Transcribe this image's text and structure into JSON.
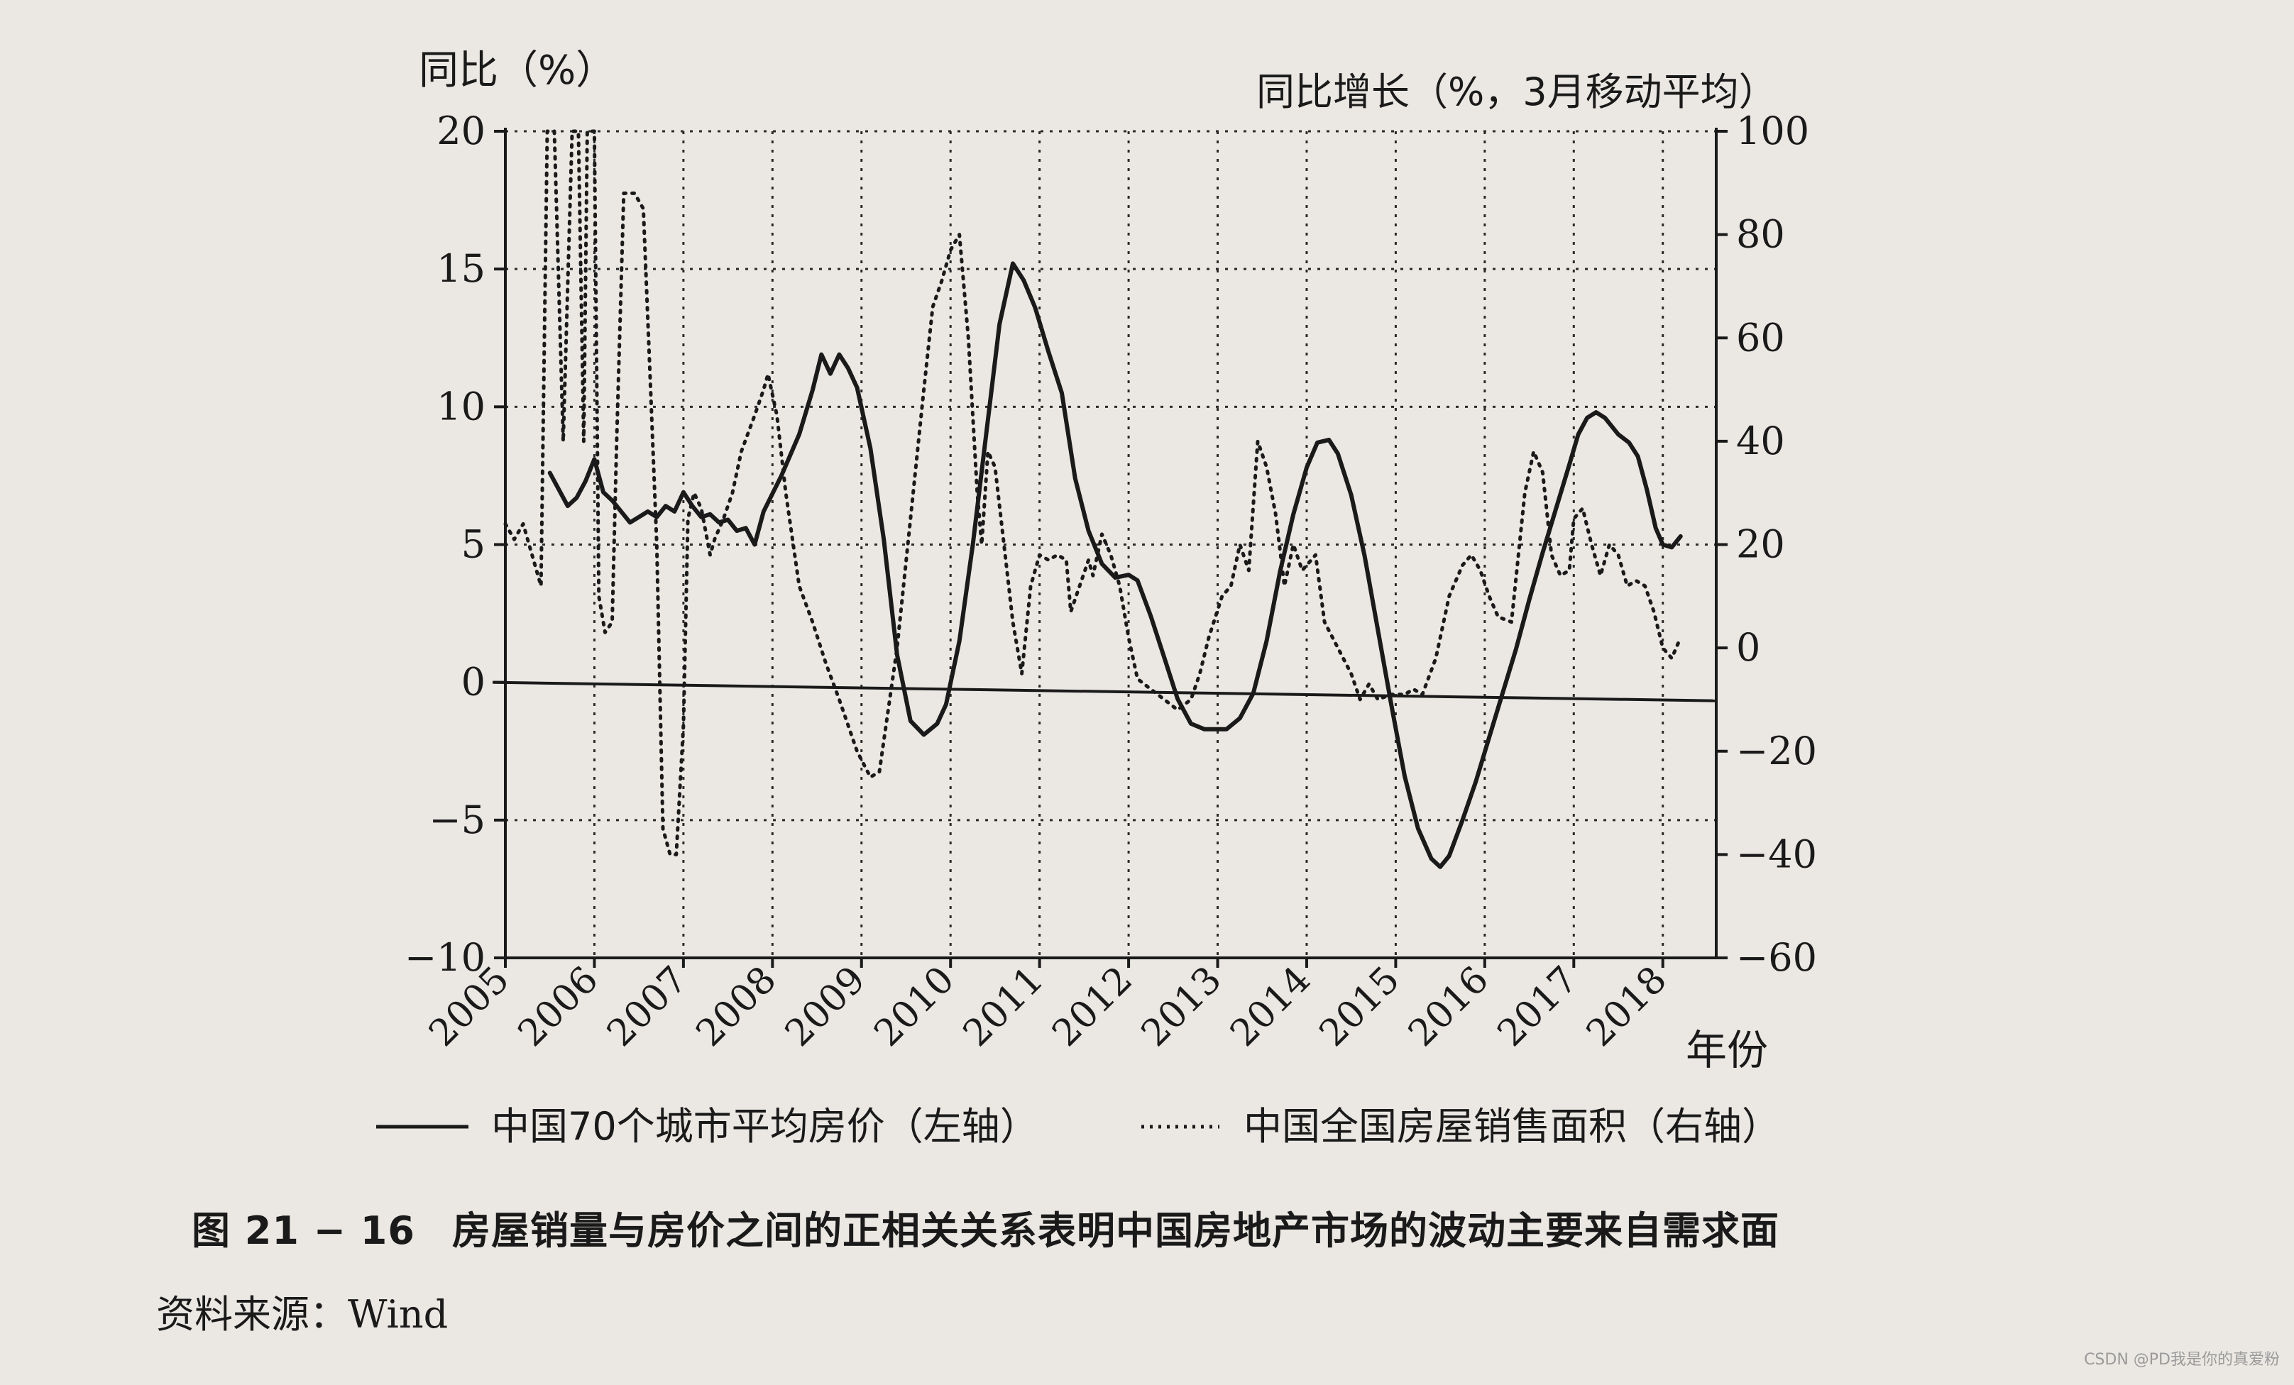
{
  "chart_data": {
    "type": "line",
    "left_axis": {
      "title": "同比（%）",
      "min": -10,
      "max": 20,
      "ticks": [
        -10,
        -5,
        0,
        5,
        10,
        15,
        20
      ]
    },
    "right_axis": {
      "title": "同比增长（%，3月移动平均）",
      "min": -60,
      "max": 100,
      "ticks": [
        -60,
        -40,
        -20,
        0,
        20,
        40,
        60,
        80,
        100
      ]
    },
    "x_axis": {
      "label": "年份",
      "min": 2005,
      "max": 2018.6,
      "ticks": [
        "2005",
        "2006",
        "2007",
        "2008",
        "2009",
        "2010",
        "2011",
        "2012",
        "2013",
        "2014",
        "2015",
        "2016",
        "2017",
        "2018"
      ]
    },
    "grid": "dotted",
    "legend": "bottom",
    "series": [
      {
        "name": "中国70个城市平均房价（左轴）",
        "axis": "left",
        "style": "solid",
        "points": [
          [
            2005.5,
            7.6
          ],
          [
            2005.6,
            7.0
          ],
          [
            2005.7,
            6.4
          ],
          [
            2005.8,
            6.7
          ],
          [
            2005.9,
            7.3
          ],
          [
            2006.0,
            8.1
          ],
          [
            2006.1,
            6.9
          ],
          [
            2006.2,
            6.6
          ],
          [
            2006.3,
            6.2
          ],
          [
            2006.4,
            5.8
          ],
          [
            2006.5,
            6.0
          ],
          [
            2006.6,
            6.2
          ],
          [
            2006.7,
            6.0
          ],
          [
            2006.8,
            6.4
          ],
          [
            2006.9,
            6.2
          ],
          [
            2007.0,
            6.9
          ],
          [
            2007.1,
            6.4
          ],
          [
            2007.2,
            6.0
          ],
          [
            2007.3,
            6.1
          ],
          [
            2007.4,
            5.8
          ],
          [
            2007.5,
            5.9
          ],
          [
            2007.6,
            5.5
          ],
          [
            2007.7,
            5.6
          ],
          [
            2007.8,
            5.0
          ],
          [
            2007.9,
            6.2
          ],
          [
            2008.1,
            7.5
          ],
          [
            2008.3,
            9.0
          ],
          [
            2008.45,
            10.6
          ],
          [
            2008.55,
            11.9
          ],
          [
            2008.65,
            11.2
          ],
          [
            2008.75,
            11.9
          ],
          [
            2008.85,
            11.4
          ],
          [
            2008.95,
            10.7
          ],
          [
            2009.1,
            8.5
          ],
          [
            2009.25,
            5.2
          ],
          [
            2009.4,
            1.0
          ],
          [
            2009.55,
            -1.4
          ],
          [
            2009.7,
            -1.9
          ],
          [
            2009.85,
            -1.5
          ],
          [
            2009.95,
            -0.8
          ],
          [
            2010.1,
            1.5
          ],
          [
            2010.25,
            5.0
          ],
          [
            2010.4,
            9.0
          ],
          [
            2010.55,
            13.0
          ],
          [
            2010.7,
            15.2
          ],
          [
            2010.82,
            14.6
          ],
          [
            2010.95,
            13.6
          ],
          [
            2011.1,
            12.0
          ],
          [
            2011.25,
            10.5
          ],
          [
            2011.4,
            7.4
          ],
          [
            2011.55,
            5.5
          ],
          [
            2011.7,
            4.3
          ],
          [
            2011.85,
            3.8
          ],
          [
            2012.0,
            3.9
          ],
          [
            2012.1,
            3.7
          ],
          [
            2012.25,
            2.4
          ],
          [
            2012.4,
            0.9
          ],
          [
            2012.55,
            -0.6
          ],
          [
            2012.7,
            -1.5
          ],
          [
            2012.85,
            -1.7
          ],
          [
            2013.0,
            -1.7
          ],
          [
            2013.1,
            -1.7
          ],
          [
            2013.25,
            -1.3
          ],
          [
            2013.4,
            -0.4
          ],
          [
            2013.55,
            1.5
          ],
          [
            2013.7,
            4.0
          ],
          [
            2013.85,
            6.1
          ],
          [
            2014.0,
            7.8
          ],
          [
            2014.12,
            8.7
          ],
          [
            2014.25,
            8.8
          ],
          [
            2014.35,
            8.3
          ],
          [
            2014.5,
            6.8
          ],
          [
            2014.65,
            4.6
          ],
          [
            2014.8,
            1.9
          ],
          [
            2014.95,
            -0.8
          ],
          [
            2015.1,
            -3.4
          ],
          [
            2015.25,
            -5.3
          ],
          [
            2015.4,
            -6.4
          ],
          [
            2015.5,
            -6.7
          ],
          [
            2015.6,
            -6.3
          ],
          [
            2015.75,
            -5.0
          ],
          [
            2015.9,
            -3.6
          ],
          [
            2016.05,
            -2.0
          ],
          [
            2016.2,
            -0.4
          ],
          [
            2016.35,
            1.2
          ],
          [
            2016.5,
            3.0
          ],
          [
            2016.65,
            4.7
          ],
          [
            2016.8,
            6.3
          ],
          [
            2016.95,
            7.9
          ],
          [
            2017.05,
            9.0
          ],
          [
            2017.15,
            9.6
          ],
          [
            2017.25,
            9.8
          ],
          [
            2017.35,
            9.6
          ],
          [
            2017.5,
            9.0
          ],
          [
            2017.62,
            8.7
          ],
          [
            2017.72,
            8.2
          ],
          [
            2017.82,
            7.0
          ],
          [
            2017.92,
            5.6
          ],
          [
            2018.0,
            5.0
          ],
          [
            2018.1,
            4.9
          ],
          [
            2018.2,
            5.3
          ]
        ]
      },
      {
        "name": "中国全国房屋销售面积（右轴）",
        "axis": "right",
        "style": "dotted",
        "points": [
          [
            2005.0,
            24
          ],
          [
            2005.1,
            21
          ],
          [
            2005.2,
            24
          ],
          [
            2005.3,
            18
          ],
          [
            2005.4,
            12
          ],
          [
            2005.47,
            100
          ],
          [
            2005.55,
            100
          ],
          [
            2005.65,
            40
          ],
          [
            2005.75,
            100
          ],
          [
            2005.82,
            100
          ],
          [
            2005.88,
            40
          ],
          [
            2005.92,
            100
          ],
          [
            2006.0,
            100
          ],
          [
            2006.05,
            10
          ],
          [
            2006.12,
            3
          ],
          [
            2006.2,
            5
          ],
          [
            2006.25,
            40
          ],
          [
            2006.33,
            88
          ],
          [
            2006.45,
            88
          ],
          [
            2006.55,
            85
          ],
          [
            2006.62,
            55
          ],
          [
            2006.7,
            20
          ],
          [
            2006.77,
            -35
          ],
          [
            2006.85,
            -40
          ],
          [
            2006.92,
            -40
          ],
          [
            2007.0,
            -15
          ],
          [
            2007.05,
            25
          ],
          [
            2007.12,
            30
          ],
          [
            2007.2,
            27
          ],
          [
            2007.3,
            18
          ],
          [
            2007.35,
            21
          ],
          [
            2007.45,
            25
          ],
          [
            2007.55,
            30
          ],
          [
            2007.65,
            38
          ],
          [
            2007.8,
            45
          ],
          [
            2007.9,
            50
          ],
          [
            2007.95,
            53
          ],
          [
            2008.05,
            45
          ],
          [
            2008.15,
            30
          ],
          [
            2008.3,
            12
          ],
          [
            2008.45,
            5
          ],
          [
            2008.6,
            -3
          ],
          [
            2008.75,
            -10
          ],
          [
            2008.95,
            -20
          ],
          [
            2009.1,
            -25
          ],
          [
            2009.2,
            -24
          ],
          [
            2009.3,
            -12
          ],
          [
            2009.4,
            0
          ],
          [
            2009.55,
            25
          ],
          [
            2009.7,
            50
          ],
          [
            2009.8,
            66
          ],
          [
            2009.9,
            71
          ],
          [
            2010.0,
            77
          ],
          [
            2010.1,
            80
          ],
          [
            2010.2,
            60
          ],
          [
            2010.3,
            30
          ],
          [
            2010.35,
            20
          ],
          [
            2010.42,
            38
          ],
          [
            2010.5,
            35
          ],
          [
            2010.6,
            20
          ],
          [
            2010.7,
            5
          ],
          [
            2010.8,
            -5
          ],
          [
            2010.9,
            12
          ],
          [
            2011.0,
            18
          ],
          [
            2011.1,
            17
          ],
          [
            2011.2,
            18
          ],
          [
            2011.3,
            17
          ],
          [
            2011.35,
            7
          ],
          [
            2011.45,
            12
          ],
          [
            2011.55,
            17
          ],
          [
            2011.6,
            14
          ],
          [
            2011.7,
            22
          ],
          [
            2011.8,
            18
          ],
          [
            2011.9,
            12
          ],
          [
            2012.0,
            2
          ],
          [
            2012.1,
            -6
          ],
          [
            2012.25,
            -8
          ],
          [
            2012.4,
            -10
          ],
          [
            2012.55,
            -12
          ],
          [
            2012.7,
            -10
          ],
          [
            2012.8,
            -5
          ],
          [
            2012.9,
            2
          ],
          [
            2013.05,
            10
          ],
          [
            2013.15,
            12
          ],
          [
            2013.25,
            20
          ],
          [
            2013.35,
            15
          ],
          [
            2013.45,
            40
          ],
          [
            2013.55,
            35
          ],
          [
            2013.65,
            26
          ],
          [
            2013.75,
            12
          ],
          [
            2013.85,
            20
          ],
          [
            2013.95,
            15
          ],
          [
            2014.1,
            18
          ],
          [
            2014.2,
            5
          ],
          [
            2014.35,
            0
          ],
          [
            2014.5,
            -5
          ],
          [
            2014.6,
            -10
          ],
          [
            2014.7,
            -7
          ],
          [
            2014.8,
            -10
          ],
          [
            2014.95,
            -9
          ],
          [
            2015.1,
            -9
          ],
          [
            2015.2,
            -8
          ],
          [
            2015.3,
            -9
          ],
          [
            2015.45,
            -2
          ],
          [
            2015.6,
            10
          ],
          [
            2015.75,
            16
          ],
          [
            2015.85,
            18
          ],
          [
            2015.95,
            15
          ],
          [
            2016.05,
            10
          ],
          [
            2016.15,
            6
          ],
          [
            2016.3,
            5
          ],
          [
            2016.45,
            30
          ],
          [
            2016.55,
            38
          ],
          [
            2016.65,
            34
          ],
          [
            2016.75,
            18
          ],
          [
            2016.85,
            14
          ],
          [
            2016.95,
            15
          ],
          [
            2017.0,
            25
          ],
          [
            2017.1,
            27
          ],
          [
            2017.2,
            20
          ],
          [
            2017.3,
            14
          ],
          [
            2017.4,
            20
          ],
          [
            2017.5,
            18
          ],
          [
            2017.6,
            12
          ],
          [
            2017.7,
            13
          ],
          [
            2017.8,
            12
          ],
          [
            2017.9,
            7
          ],
          [
            2018.0,
            0
          ],
          [
            2018.1,
            -2
          ],
          [
            2018.2,
            2
          ]
        ]
      }
    ]
  },
  "caption": {
    "number": "图 21 − 16",
    "text": "房屋销量与房价之间的正相关关系表明中国房地产市场的波动主要来自需求面"
  },
  "source": "资料来源：Wind",
  "watermark": "CSDN @PD我是你的真爱粉"
}
